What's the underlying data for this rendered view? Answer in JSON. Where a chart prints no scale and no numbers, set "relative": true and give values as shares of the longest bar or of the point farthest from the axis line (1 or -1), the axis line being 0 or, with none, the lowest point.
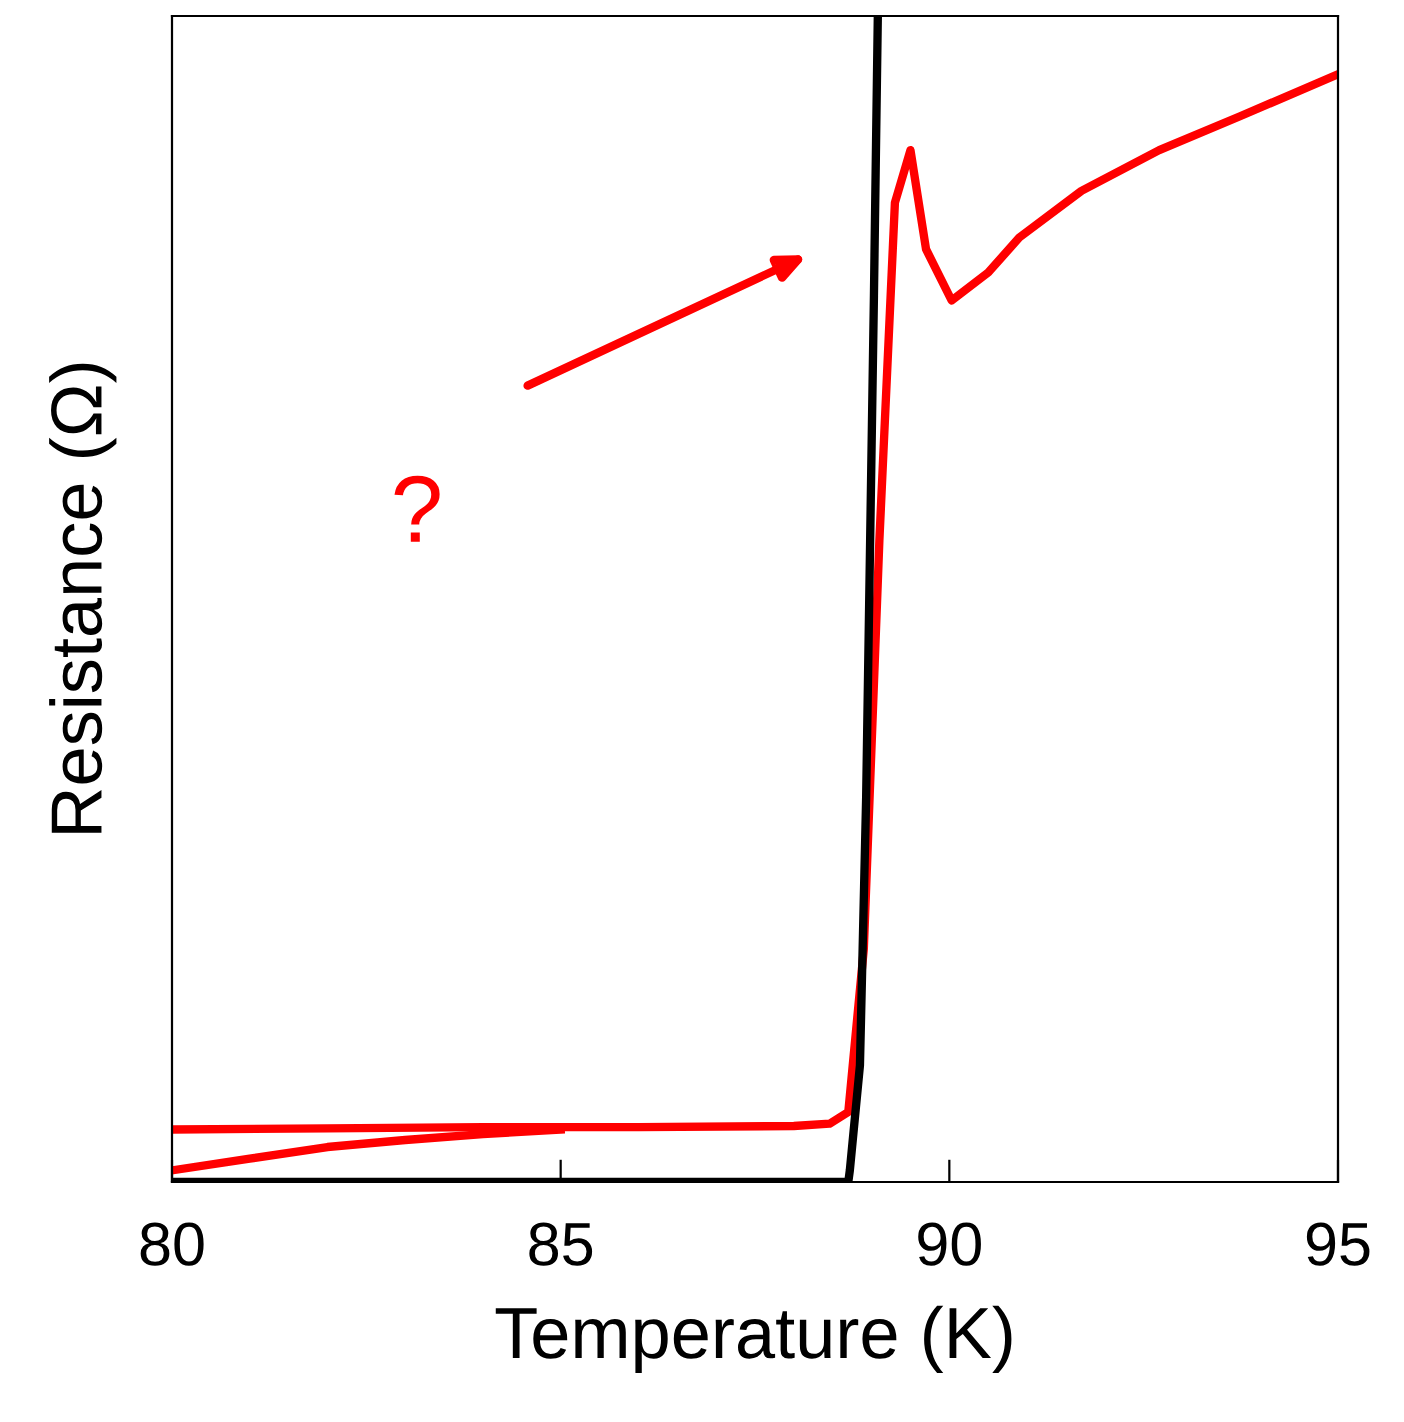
{
  "chart_data": {
    "type": "line",
    "relative": true,
    "xlabel": "Temperature (K)",
    "ylabel": "Resistance (Ω)",
    "xlim": [
      80,
      95
    ],
    "xticks": [
      80,
      85,
      90,
      95
    ],
    "tick_labels": "x",
    "grid": false,
    "legend": false,
    "marker": "none",
    "line_style": "solid",
    "series": [
      {
        "color": "#ff0000",
        "x": [
          80,
          82,
          84,
          86,
          88,
          88.46,
          88.7,
          88.9,
          89.1,
          89.3,
          89.5,
          89.7,
          90.03,
          90.5,
          90.9,
          91.7,
          92.7,
          93.74,
          95
        ],
        "values": [
          0.045,
          0.046,
          0.047,
          0.047,
          0.048,
          0.05,
          0.06,
          0.2,
          0.55,
          0.84,
          0.885,
          0.8,
          0.756,
          0.78,
          0.81,
          0.85,
          0.885,
          0.914,
          0.95
        ]
      },
      {
        "color": "#ff0000",
        "x": [
          80,
          81,
          82,
          83,
          84,
          85
        ],
        "values": [
          0.01,
          0.02,
          0.03,
          0.036,
          0.041,
          0.045
        ]
      },
      {
        "color": "#000000",
        "x": [
          80,
          84,
          88.7,
          88.72,
          88.85,
          88.93,
          89.03,
          89.08
        ],
        "values": [
          0,
          0,
          0,
          0.01,
          0.1,
          0.33,
          0.76,
          1.0
        ]
      }
    ],
    "annotations": [
      "?"
    ]
  }
}
